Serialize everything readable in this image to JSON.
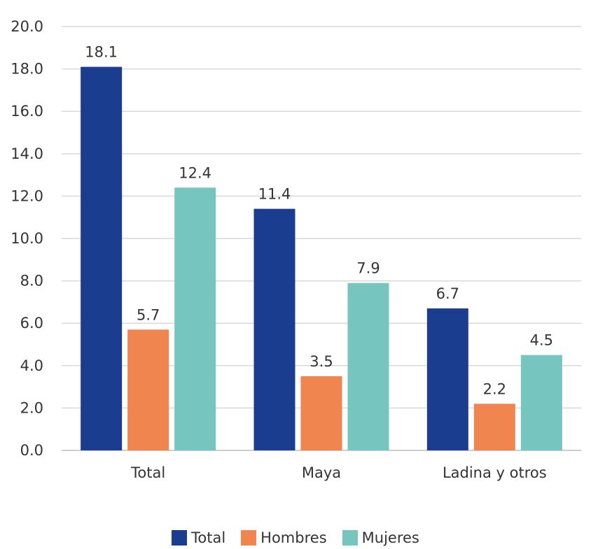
{
  "chart_data": {
    "type": "bar",
    "categories": [
      "Total",
      "Maya",
      "Ladina y otros"
    ],
    "series": [
      {
        "name": "Total",
        "values": [
          18.1,
          11.4,
          6.7
        ],
        "color": "#1b3d8f"
      },
      {
        "name": "Hombres",
        "values": [
          5.7,
          3.5,
          2.2
        ],
        "color": "#f08550"
      },
      {
        "name": "Mujeres",
        "values": [
          12.4,
          7.9,
          4.5
        ],
        "color": "#76c6bf"
      }
    ],
    "yticks": [
      "0.0",
      "2.0",
      "4.0",
      "6.0",
      "8.0",
      "10.0",
      "12.0",
      "14.0",
      "16.0",
      "18.0",
      "20.0"
    ],
    "ylim": [
      0,
      20
    ],
    "grid": true,
    "legend": "bottom",
    "title": "",
    "xlabel": "",
    "ylabel": ""
  }
}
